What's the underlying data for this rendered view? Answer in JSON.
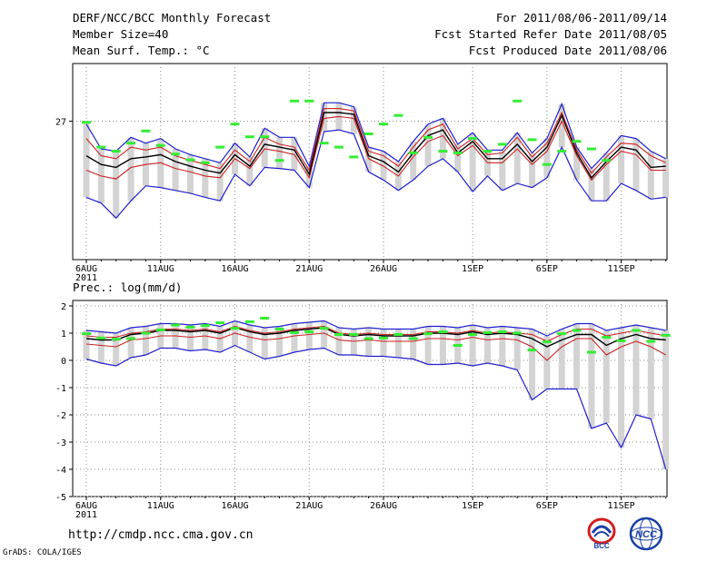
{
  "header": {
    "title": "DERF/NCC/BCC Monthly Forecast",
    "member_size": "Member Size=40",
    "variable": "Mean Surf. Temp.: °C",
    "period": "For 2011/08/06-2011/09/14",
    "started": "Fcst Started Refer Date 2011/08/05",
    "produced": "Fcst Produced Date 2011/08/06"
  },
  "footer": {
    "url": "http://cmdp.ncc.cma.gov.cn",
    "grads": "GrADS: COLA/IGES",
    "logo_bcc": "BCC",
    "logo_ncc": "NCC"
  },
  "colors": {
    "bar": "#d3d3d3",
    "obs": "#33ee33",
    "mean": "#000000",
    "center": "#cc2222",
    "envelope": "#1f1fcf",
    "grid": "#888888"
  },
  "chart_data": [
    {
      "type": "line",
      "title": "Mean Surf. Temp.: °C",
      "x_tick_labels": [
        "6AUG",
        "11AUG",
        "16AUG",
        "21AUG",
        "26AUG",
        "1SEP",
        "6SEP",
        "11SEP"
      ],
      "x_tick_index": [
        0,
        5,
        10,
        15,
        20,
        26,
        31,
        36
      ],
      "x_year_label": "2011",
      "y_ticks": [
        27
      ],
      "y_tick_labels": [
        "27"
      ],
      "ylim": [
        24.6,
        28.0
      ],
      "days": 40,
      "series": [
        {
          "name": "max",
          "values": [
            26.95,
            26.52,
            26.48,
            26.72,
            26.62,
            26.7,
            26.52,
            26.42,
            26.35,
            26.28,
            26.62,
            26.38,
            26.88,
            26.72,
            26.72,
            26.22,
            27.32,
            27.32,
            27.25,
            26.55,
            26.48,
            26.3,
            26.65,
            26.95,
            27.05,
            26.6,
            26.8,
            26.5,
            26.5,
            26.8,
            26.45,
            26.7,
            27.3,
            26.55,
            26.18,
            26.45,
            26.75,
            26.7,
            26.48,
            26.35
          ]
        },
        {
          "name": "upper",
          "values": [
            26.7,
            26.4,
            26.35,
            26.55,
            26.5,
            26.55,
            26.4,
            26.32,
            26.25,
            26.18,
            26.5,
            26.3,
            26.72,
            26.6,
            26.55,
            26.15,
            27.22,
            27.22,
            27.18,
            26.48,
            26.4,
            26.22,
            26.55,
            26.85,
            26.95,
            26.52,
            26.7,
            26.42,
            26.45,
            26.72,
            26.38,
            26.62,
            27.15,
            26.5,
            26.1,
            26.38,
            26.62,
            26.6,
            26.4,
            26.28
          ]
        },
        {
          "name": "mean",
          "values": [
            26.4,
            26.25,
            26.2,
            26.35,
            26.38,
            26.42,
            26.3,
            26.22,
            26.15,
            26.1,
            26.42,
            26.22,
            26.6,
            26.55,
            26.5,
            26.08,
            27.15,
            27.15,
            27.12,
            26.4,
            26.3,
            26.12,
            26.45,
            26.75,
            26.85,
            26.45,
            26.65,
            26.35,
            26.35,
            26.6,
            26.3,
            26.55,
            27.1,
            26.45,
            26.02,
            26.3,
            26.55,
            26.5,
            26.2,
            26.22
          ]
        },
        {
          "name": "lower",
          "values": [
            26.15,
            26.05,
            26.0,
            26.2,
            26.25,
            26.28,
            26.18,
            26.12,
            26.05,
            26.02,
            26.35,
            26.18,
            26.52,
            26.48,
            26.42,
            26.02,
            27.05,
            27.08,
            27.05,
            26.35,
            26.22,
            26.05,
            26.38,
            26.65,
            26.75,
            26.4,
            26.58,
            26.28,
            26.28,
            26.52,
            26.25,
            26.48,
            27.0,
            26.4,
            25.98,
            26.25,
            26.48,
            26.42,
            26.15,
            26.15
          ]
        },
        {
          "name": "min",
          "values": [
            25.68,
            25.58,
            25.32,
            25.62,
            25.88,
            25.85,
            25.8,
            25.75,
            25.68,
            25.62,
            26.08,
            25.88,
            26.2,
            26.18,
            26.15,
            25.85,
            26.82,
            26.85,
            26.78,
            26.12,
            25.98,
            25.8,
            25.98,
            26.22,
            26.35,
            26.12,
            25.78,
            26.05,
            25.8,
            25.92,
            25.85,
            26.02,
            26.55,
            25.98,
            25.62,
            25.62,
            25.92,
            25.8,
            25.65,
            25.68
          ]
        }
      ],
      "observed": [
        26.98,
        26.55,
        26.48,
        26.62,
        26.83,
        26.58,
        26.43,
        26.33,
        26.28,
        26.55,
        26.95,
        26.73,
        26.73,
        26.32,
        27.35,
        27.35,
        26.62,
        26.55,
        26.38,
        26.78,
        26.95,
        27.1,
        26.45,
        26.72,
        26.48,
        26.45,
        26.7,
        26.48,
        26.6,
        27.35,
        26.68,
        26.25,
        26.48,
        26.65,
        26.52,
        26.32
      ]
    },
    {
      "type": "line",
      "title": "Prec.: log(mm/d)",
      "x_tick_labels": [
        "6AUG",
        "11AUG",
        "16AUG",
        "21AUG",
        "26AUG",
        "1SEP",
        "6SEP",
        "11SEP"
      ],
      "x_tick_index": [
        0,
        5,
        10,
        15,
        20,
        26,
        31,
        36
      ],
      "x_year_label": "2011",
      "y_ticks": [
        2,
        1,
        0,
        -1,
        -2,
        -3,
        -4,
        -5
      ],
      "y_tick_labels": [
        "2",
        "1",
        "0",
        "-1",
        "-2",
        "-3",
        "-4",
        "-5"
      ],
      "ylim": [
        -5,
        2.2
      ],
      "days": 40,
      "series": [
        {
          "name": "max",
          "values": [
            1.1,
            1.05,
            1.0,
            1.2,
            1.25,
            1.35,
            1.35,
            1.3,
            1.35,
            1.25,
            1.45,
            1.3,
            1.2,
            1.25,
            1.35,
            1.4,
            1.45,
            1.2,
            1.15,
            1.2,
            1.15,
            1.15,
            1.15,
            1.25,
            1.25,
            1.2,
            1.3,
            1.2,
            1.25,
            1.2,
            1.15,
            0.9,
            1.15,
            1.35,
            1.35,
            1.1,
            1.2,
            1.3,
            1.2,
            1.1
          ]
        },
        {
          "name": "upper",
          "values": [
            0.9,
            0.85,
            0.85,
            1.0,
            1.05,
            1.15,
            1.15,
            1.1,
            1.15,
            1.05,
            1.25,
            1.1,
            1.0,
            1.05,
            1.15,
            1.2,
            1.25,
            1.0,
            0.95,
            1.0,
            0.95,
            0.95,
            0.95,
            1.05,
            1.05,
            1.0,
            1.1,
            1.0,
            1.05,
            1.0,
            0.95,
            0.7,
            0.95,
            1.15,
            1.15,
            0.9,
            1.0,
            1.1,
            1.0,
            0.9
          ]
        },
        {
          "name": "mean",
          "values": [
            0.8,
            0.75,
            0.75,
            0.95,
            1.0,
            1.1,
            1.1,
            1.05,
            1.1,
            1.0,
            1.2,
            1.05,
            0.95,
            1.0,
            1.1,
            1.15,
            1.2,
            0.95,
            0.9,
            0.95,
            0.9,
            0.9,
            0.9,
            1.0,
            1.0,
            0.95,
            1.05,
            0.95,
            1.0,
            0.95,
            0.8,
            0.5,
            0.75,
            0.95,
            0.95,
            0.55,
            0.8,
            0.95,
            0.8,
            0.75
          ]
        },
        {
          "name": "lower",
          "values": [
            0.6,
            0.55,
            0.5,
            0.75,
            0.8,
            0.9,
            0.9,
            0.85,
            0.9,
            0.8,
            1.0,
            0.85,
            0.75,
            0.8,
            0.9,
            0.95,
            1.0,
            0.75,
            0.7,
            0.75,
            0.7,
            0.7,
            0.7,
            0.8,
            0.8,
            0.75,
            0.85,
            0.75,
            0.8,
            0.75,
            0.5,
            0.0,
            0.5,
            0.8,
            0.8,
            0.2,
            0.5,
            0.7,
            0.5,
            0.2
          ]
        },
        {
          "name": "min",
          "values": [
            0.05,
            -0.1,
            -0.2,
            0.1,
            0.2,
            0.45,
            0.45,
            0.35,
            0.4,
            0.3,
            0.55,
            0.3,
            0.05,
            0.15,
            0.3,
            0.4,
            0.45,
            0.2,
            0.2,
            0.15,
            0.15,
            0.1,
            0.05,
            -0.15,
            -0.15,
            -0.1,
            -0.2,
            -0.1,
            -0.2,
            -0.35,
            -1.45,
            -1.05,
            -1.05,
            -1.05,
            -2.5,
            -2.3,
            -3.2,
            -2.0,
            -2.15,
            -4.0
          ]
        }
      ],
      "observed": [
        0.98,
        0.82,
        0.78,
        0.8,
        1.0,
        1.12,
        1.3,
        1.22,
        1.28,
        1.38,
        1.18,
        1.42,
        1.55,
        1.15,
        1.02,
        1.05,
        1.18,
        0.95,
        0.95,
        0.8,
        0.82,
        0.95,
        0.8,
        0.98,
        1.05,
        0.55,
        0.95,
        1.02,
        1.05,
        1.0,
        0.38,
        0.68,
        0.98,
        1.1,
        0.3,
        0.85,
        0.72,
        1.1,
        0.7,
        0.92
      ]
    }
  ]
}
